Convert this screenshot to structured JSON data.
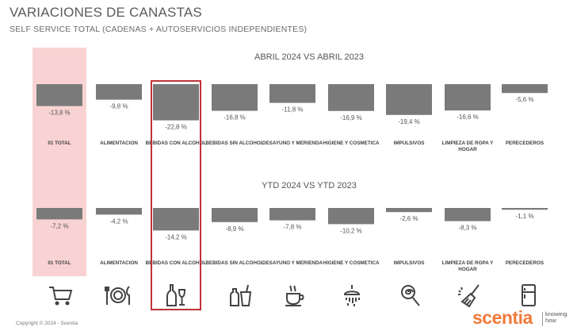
{
  "header": {
    "title": "VARIACIONES DE CANASTAS",
    "subtitle": "SELF SERVICE TOTAL (CADENAS + AUTOSERVICIOS INDEPENDIENTES)"
  },
  "chart_data": [
    {
      "type": "bar",
      "title": "ABRIL 2024 VS ABRIL 2023",
      "categories": [
        "01 TOTAL",
        "ALIMENTACION",
        "BEBIDAS CON ALCOHOL",
        "BEBIDAS SIN ALCOHOL",
        "DESAYUNO Y MERIENDA",
        "HIGIENE Y COSMETICA",
        "IMPULSIVOS",
        "LIMPIEZA DE ROPA Y HOGAR",
        "PERECEDEROS"
      ],
      "values": [
        -13.8,
        -9.8,
        -22.8,
        -16.8,
        -11.8,
        -16.9,
        -19.4,
        -16.6,
        -5.6
      ],
      "value_labels": [
        "-13,8 %",
        "-9,8 %",
        "-22,8 %",
        "-16,8 %",
        "-11,8 %",
        "-16,9 %",
        "-19,4 %",
        "-16,6 %",
        "-5,6 %"
      ],
      "highlight_total": "01 TOTAL",
      "highlight_box": "BEBIDAS CON ALCOHOL",
      "bar_color": "#7a7a7a"
    },
    {
      "type": "bar",
      "title": "YTD 2024 VS YTD 2023",
      "categories": [
        "01 TOTAL",
        "ALIMENTACION",
        "BEBIDAS CON ALCOHOL",
        "BEBIDAS SIN ALCOHOL",
        "DESAYUNO Y MERIENDA",
        "HIGIENE Y COSMETICA",
        "IMPULSIVOS",
        "LIMPIEZA DE ROPA Y HOGAR",
        "PERECEDEROS"
      ],
      "values": [
        -7.2,
        -4.2,
        -14.2,
        -8.9,
        -7.8,
        -10.2,
        -2.6,
        -8.3,
        -1.1
      ],
      "value_labels": [
        "-7,2 %",
        "-4,2 %",
        "-14,2 %",
        "-8,9 %",
        "-7,8 %",
        "-10,2 %",
        "-2,6 %",
        "-8,3 %",
        "-1,1 %"
      ],
      "highlight_total": "01 TOTAL",
      "highlight_box": "BEBIDAS CON ALCOHOL",
      "bar_color": "#7a7a7a"
    }
  ],
  "icons": [
    "cart-icon",
    "cutlery-icon",
    "wine-bottle-icon",
    "soda-cup-icon",
    "coffee-cup-icon",
    "shower-icon",
    "lollipop-icon",
    "broom-icon",
    "fridge-icon"
  ],
  "footer": {
    "copyright": "Copyright © 2024 - Scentia",
    "brand": "scentia",
    "tagline_1": "knowing",
    "tagline_2": "how",
    "brand_color": "#f07a3a"
  }
}
